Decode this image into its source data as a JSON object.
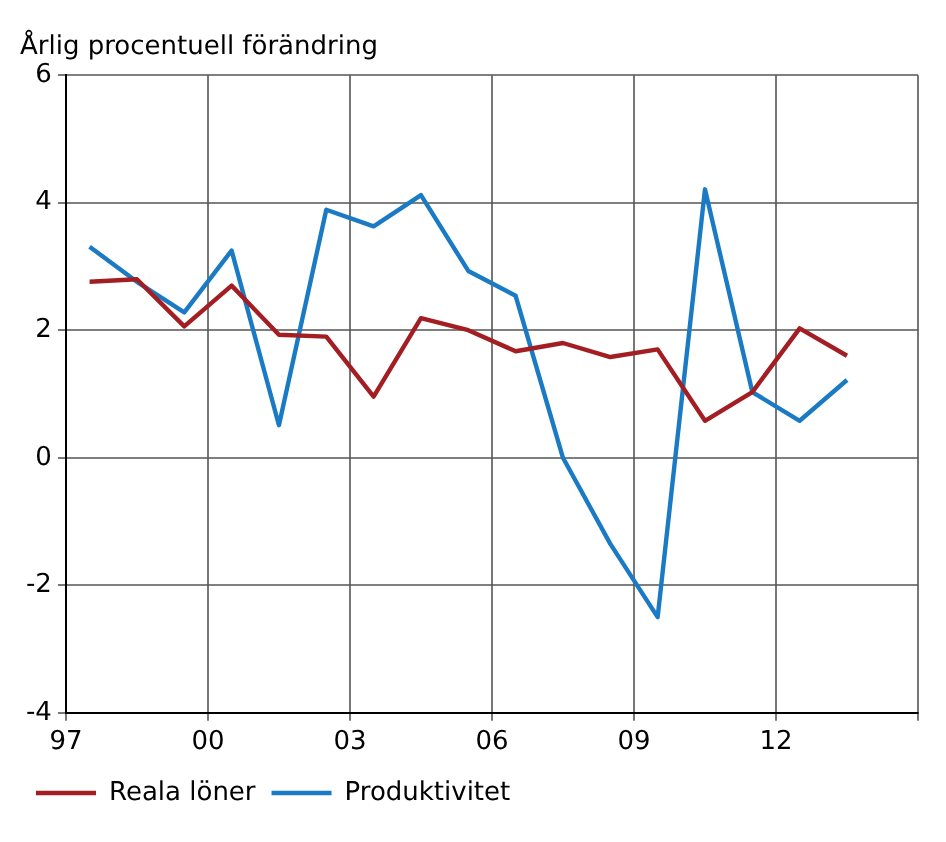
{
  "chart_data": {
    "type": "line",
    "title": "Årlig procentuell förändring",
    "x": [
      1997.5,
      1998.5,
      1999.5,
      2000.5,
      2001.5,
      2002.5,
      2003.5,
      2004.5,
      2005.5,
      2006.5,
      2007.5,
      2008.5,
      2009.5,
      2010.5,
      2011.5,
      2012.5,
      2013.5
    ],
    "series": [
      {
        "name": "Reala löner",
        "color": "#a31e22",
        "values": [
          2.76,
          2.8,
          2.06,
          2.7,
          1.93,
          1.9,
          0.96,
          2.19,
          2.0,
          1.67,
          1.8,
          1.58,
          1.7,
          0.58,
          1.03,
          2.03,
          1.6
        ]
      },
      {
        "name": "Produktivitet",
        "color": "#1a7bc4",
        "values": [
          3.31,
          2.76,
          2.28,
          3.25,
          0.51,
          3.89,
          3.63,
          4.12,
          2.93,
          2.54,
          0.0,
          -1.35,
          -2.5,
          4.21,
          1.03,
          0.58,
          1.22
        ]
      }
    ],
    "xlim": [
      1997,
      2015
    ],
    "xticks": [
      {
        "value": 1997,
        "label": "97"
      },
      {
        "value": 2000,
        "label": "00"
      },
      {
        "value": 2003,
        "label": "03"
      },
      {
        "value": 2006,
        "label": "06"
      },
      {
        "value": 2009,
        "label": "09"
      },
      {
        "value": 2012,
        "label": "12"
      },
      {
        "value": 2015,
        "label": null
      }
    ],
    "ylim": [
      -4,
      6
    ],
    "yticks": [
      -4,
      -2,
      0,
      2,
      4,
      6
    ],
    "grid": true,
    "legend": "bottom left",
    "marker": "none",
    "line_style": "solid"
  }
}
